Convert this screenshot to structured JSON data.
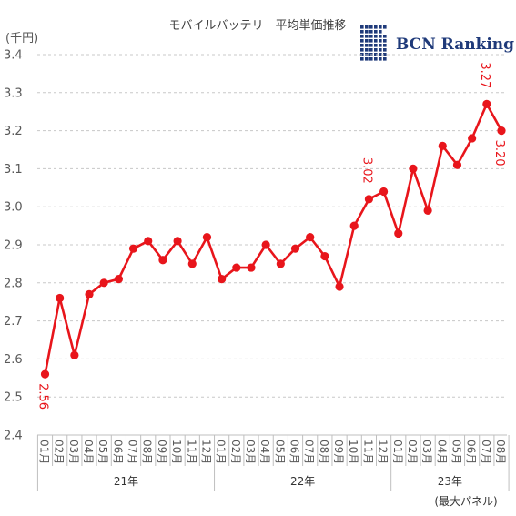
{
  "chart_data": {
    "type": "line",
    "title": "モバイルバッテリ　平均単価推移",
    "unit_label": "(千円)",
    "footnote": "(最大パネル)",
    "brand": "BCN Ranking",
    "ylim": [
      2.4,
      3.4
    ],
    "y_ticks": [
      "2.4",
      "2.5",
      "2.6",
      "2.7",
      "2.8",
      "2.9",
      "3.0",
      "3.1",
      "3.2",
      "3.3",
      "3.4"
    ],
    "grid": true,
    "series_color": "#e8151b",
    "categories": [
      "01月",
      "02月",
      "03月",
      "04月",
      "05月",
      "06月",
      "07月",
      "08月",
      "09月",
      "10月",
      "11月",
      "12月",
      "01月",
      "02月",
      "03月",
      "04月",
      "05月",
      "06月",
      "07月",
      "08月",
      "09月",
      "10月",
      "11月",
      "12月",
      "01月",
      "02月",
      "03月",
      "04月",
      "05月",
      "06月",
      "07月",
      "08月"
    ],
    "years": [
      {
        "label": "21年",
        "start": 0,
        "end": 11
      },
      {
        "label": "22年",
        "start": 12,
        "end": 23
      },
      {
        "label": "23年",
        "start": 24,
        "end": 31
      }
    ],
    "values": [
      2.56,
      2.76,
      2.61,
      2.77,
      2.8,
      2.81,
      2.89,
      2.91,
      2.86,
      2.91,
      2.85,
      2.92,
      2.81,
      2.84,
      2.84,
      2.9,
      2.85,
      2.89,
      2.92,
      2.87,
      2.79,
      2.95,
      3.02,
      3.04,
      2.93,
      3.1,
      2.99,
      3.16,
      3.11,
      3.18,
      3.27,
      3.2
    ],
    "data_labels": [
      {
        "index": 0,
        "text": "2.56"
      },
      {
        "index": 22,
        "text": "3.02"
      },
      {
        "index": 30,
        "text": "3.27"
      },
      {
        "index": 31,
        "text": "3.20"
      }
    ]
  }
}
